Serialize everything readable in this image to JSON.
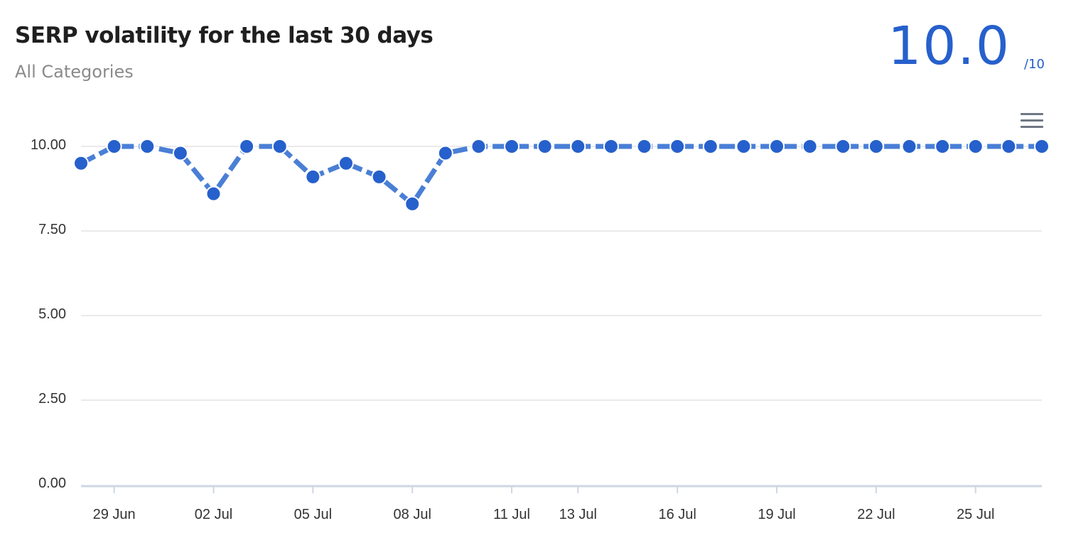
{
  "header": {
    "title": "SERP volatility for the last 30 days",
    "subtitle": "All Categories",
    "score": "10.0",
    "score_max": "/10"
  },
  "menu": {
    "icon": "hamburger-menu-icon"
  },
  "colors": {
    "accent": "#2660cc",
    "line": "#4a7fd6",
    "grid": "#e3e3e3",
    "axis": "#cfd6e3"
  },
  "chart_data": {
    "type": "line",
    "title": "SERP volatility for the last 30 days",
    "subtitle": "All Categories",
    "xlabel": "",
    "ylabel": "",
    "ylim": [
      0,
      11
    ],
    "yticks": [
      "0.00",
      "2.50",
      "5.00",
      "7.50",
      "10.00"
    ],
    "x": [
      "28 Jun",
      "29 Jun",
      "30 Jun",
      "01 Jul",
      "02 Jul",
      "03 Jul",
      "04 Jul",
      "05 Jul",
      "06 Jul",
      "07 Jul",
      "08 Jul",
      "09 Jul",
      "10 Jul",
      "11 Jul",
      "12 Jul",
      "13 Jul",
      "14 Jul",
      "15 Jul",
      "16 Jul",
      "17 Jul",
      "18 Jul",
      "19 Jul",
      "20 Jul",
      "21 Jul",
      "22 Jul",
      "23 Jul",
      "24 Jul",
      "25 Jul",
      "26 Jul",
      "27 Jul"
    ],
    "xtick_labels": [
      "29 Jun",
      "02 Jul",
      "05 Jul",
      "08 Jul",
      "11 Jul",
      "13 Jul",
      "16 Jul",
      "19 Jul",
      "22 Jul",
      "25 Jul"
    ],
    "series": [
      {
        "values": [
          9.5,
          10.0,
          10.0,
          9.8,
          8.6,
          10.0,
          10.0,
          9.1,
          9.5,
          9.1,
          8.3,
          9.8,
          10.0,
          10.0,
          10.0,
          10.0,
          10.0,
          10.0,
          10.0,
          10.0,
          10.0,
          10.0,
          10.0,
          10.0,
          10.0,
          10.0,
          10.0,
          10.0,
          10.0,
          10.0
        ]
      }
    ],
    "grid": true,
    "legend": "none"
  }
}
